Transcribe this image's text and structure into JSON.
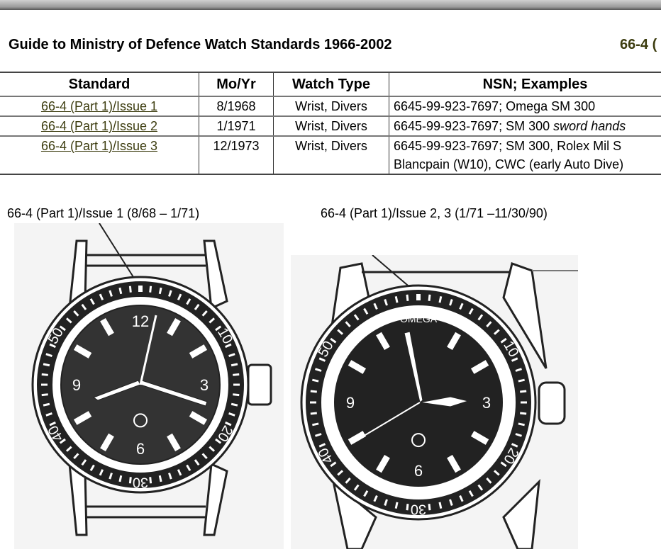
{
  "header": {
    "title": "Guide to Ministry of Defence Watch Standards 1966-2002",
    "code": "66-4 ("
  },
  "table": {
    "columns": [
      "Standard",
      "Mo/Yr",
      "Watch Type",
      "NSN; Examples"
    ],
    "rows": [
      {
        "standard": "66-4 (Part 1)/Issue 1",
        "moyr": "8/1968",
        "type": "Wrist, Divers",
        "nsn": "6645-99-923-7697; Omega SM 300",
        "nsn_italic": "",
        "nsn2": ""
      },
      {
        "standard": "66-4 (Part 1)/Issue 2",
        "moyr": "1/1971",
        "type": "Wrist, Divers",
        "nsn": "6645-99-923-7697; SM 300 ",
        "nsn_italic": "sword hands",
        "nsn2": ""
      },
      {
        "standard": "66-4 (Part 1)/Issue 3",
        "moyr": "12/1973",
        "type": "Wrist, Divers",
        "nsn": "6645-99-923-7697; SM 300, Rolex Mil S",
        "nsn_italic": "",
        "nsn2": "Blancpain (W10), CWC (early Auto Dive)"
      }
    ],
    "link_color": "#3d3d10"
  },
  "figures": [
    {
      "caption": "66-4 (Part 1)/Issue 1 (8/68 – 1/71)",
      "bezel": [
        "10",
        "20",
        "30",
        "40",
        "50"
      ],
      "dial": [
        "12",
        "3",
        "6",
        "9"
      ]
    },
    {
      "caption": "66-4 (Part 1)/Issue 2, 3 (1/71 –11/30/90)",
      "bezel": [
        "10",
        "20",
        "30",
        "40",
        "50"
      ],
      "dial": [
        "3",
        "6",
        "9"
      ],
      "dial_text": "OMEGA"
    }
  ]
}
